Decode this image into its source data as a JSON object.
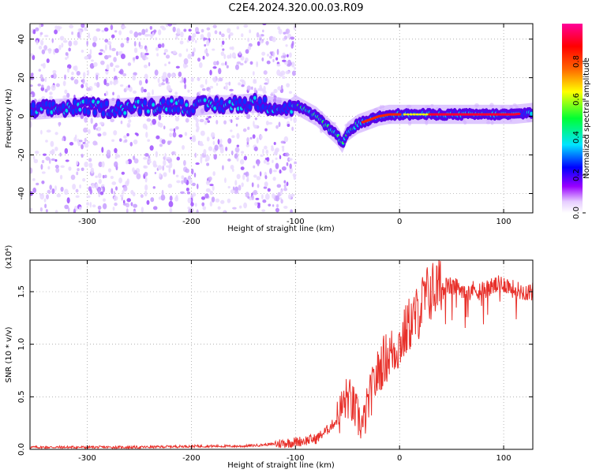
{
  "title": "C2E4.2024.320.00.03.R09",
  "chart_data": [
    {
      "type": "heatmap",
      "name": "spectrogram",
      "xlabel": "Height of straight line (km)",
      "ylabel": "Frequency (Hz)",
      "xlim": [
        -355,
        128
      ],
      "ylim": [
        -50,
        48
      ],
      "xticks": [
        -300,
        -200,
        -100,
        0,
        100
      ],
      "yticks": [
        -40,
        -20,
        0,
        20,
        40
      ],
      "grid": true,
      "colorbar": {
        "label": "Normalized spectral amplitude",
        "range": [
          0.0,
          1.0
        ],
        "ticks": [
          "0.0",
          "0.2",
          "0.4",
          "0.6",
          "0.8"
        ],
        "colors": [
          "#ffffff",
          "#9900ff",
          "#0000ff",
          "#00e5ff",
          "#00ff33",
          "#ffff00",
          "#ff6600",
          "#ff0000",
          "#ff0099"
        ]
      },
      "ridge": {
        "x": [
          -355,
          -330,
          -300,
          -280,
          -250,
          -220,
          -200,
          -180,
          -160,
          -140,
          -120,
          -105,
          -100,
          -90,
          -80,
          -70,
          -60,
          -55,
          -50,
          -40,
          -30,
          -20,
          -10,
          0,
          20,
          50,
          80,
          110,
          128
        ],
        "y": [
          3,
          4,
          5,
          4,
          5,
          6,
          5,
          6,
          6,
          7,
          5,
          4,
          6,
          3,
          0,
          -5,
          -10,
          -14,
          -8,
          -4,
          -2,
          0,
          1,
          1,
          1,
          1,
          1,
          1,
          2
        ]
      }
    },
    {
      "type": "line",
      "name": "snr",
      "xlabel": "Height of straight line (km)",
      "ylabel": "SNR (10 * v/v)",
      "scale_label": "(x10⁴)",
      "xlim": [
        -355,
        128
      ],
      "ylim": [
        0.0,
        1.8
      ],
      "xticks": [
        -300,
        -200,
        -100,
        0,
        100
      ],
      "yticks": [
        "0.0",
        "0.5",
        "1.0",
        "1.5"
      ],
      "grid": true,
      "color": "#e8302a",
      "series": [
        {
          "x": [
            -355,
            -300,
            -250,
            -200,
            -150,
            -120,
            -100,
            -80,
            -70,
            -60,
            -55,
            -50,
            -45,
            -40,
            -35,
            -30,
            -25,
            -20,
            -15,
            -10,
            -5,
            0,
            5,
            10,
            15,
            20,
            25,
            30,
            40,
            50,
            60,
            70,
            80,
            90,
            100,
            110,
            120,
            128
          ],
          "y": [
            0.02,
            0.02,
            0.02,
            0.03,
            0.03,
            0.05,
            0.07,
            0.1,
            0.18,
            0.28,
            0.4,
            0.5,
            0.42,
            0.3,
            0.22,
            0.45,
            0.6,
            0.75,
            0.85,
            0.9,
            0.95,
            1.0,
            1.1,
            1.2,
            1.25,
            1.35,
            1.45,
            1.5,
            1.55,
            1.55,
            1.53,
            1.52,
            1.52,
            1.55,
            1.58,
            1.52,
            1.5,
            1.5
          ]
        }
      ]
    }
  ]
}
